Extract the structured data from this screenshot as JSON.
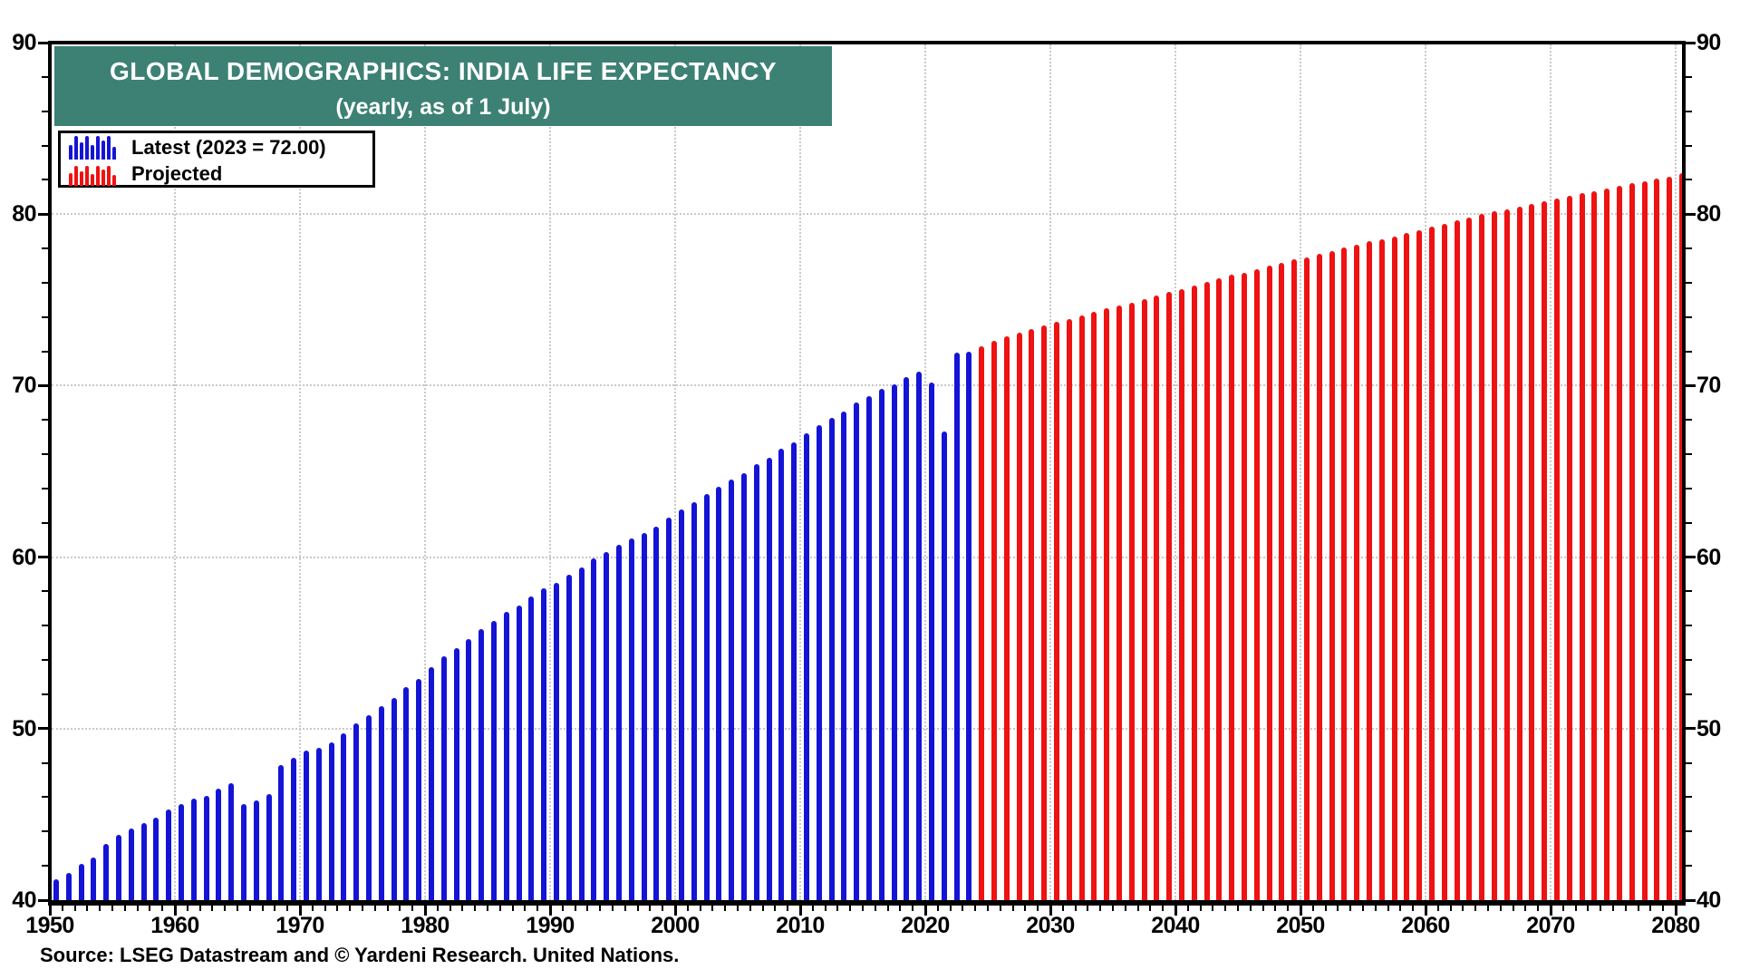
{
  "title": {
    "line1": "GLOBAL DEMOGRAPHICS: INDIA LIFE EXPECTANCY",
    "line2": "(yearly, as of 1 July)"
  },
  "legend": {
    "items": [
      {
        "label": "Latest (2023 = 72.00)",
        "series": "latest"
      },
      {
        "label": "Projected",
        "series": "projected"
      }
    ]
  },
  "source_note": "Source: LSEG Datastream and © Yardeni Research. United Nations.",
  "colors": {
    "latest": "#1414d6",
    "projected": "#ee1212",
    "title_bg": "#3c8174",
    "title_text": "#ffffff",
    "grid": "#c9c9c9",
    "axis": "#000000"
  },
  "chart_data": {
    "type": "bar",
    "title": "GLOBAL DEMOGRAPHICS: INDIA LIFE EXPECTANCY",
    "subtitle": "(yearly, as of 1 July)",
    "ylim": [
      40,
      90
    ],
    "xlim": [
      1950,
      2080
    ],
    "grid": true,
    "legend_position": "top-left",
    "y_major_ticks": [
      40,
      50,
      60,
      70,
      80,
      90
    ],
    "y_minor_step": 2,
    "x_major_ticks": [
      1950,
      1960,
      1970,
      1980,
      1990,
      2000,
      2010,
      2020,
      2030,
      2040,
      2050,
      2060,
      2070,
      2080
    ],
    "x_minor_step": 1,
    "series": [
      {
        "name": "Latest (2023 = 72.00)",
        "color": "#1414d6",
        "start_year": 1950,
        "end_year": 2023,
        "values": [
          41.2,
          41.6,
          42.1,
          42.5,
          43.3,
          43.8,
          44.2,
          44.5,
          44.8,
          45.3,
          45.6,
          45.9,
          46.1,
          46.5,
          46.8,
          45.6,
          45.8,
          46.2,
          47.9,
          48.3,
          48.7,
          48.9,
          49.2,
          49.7,
          50.3,
          50.8,
          51.3,
          51.8,
          52.4,
          52.9,
          53.6,
          54.2,
          54.7,
          55.2,
          55.8,
          56.3,
          56.8,
          57.2,
          57.7,
          58.2,
          58.5,
          59.0,
          59.4,
          59.9,
          60.3,
          60.7,
          61.1,
          61.4,
          61.8,
          62.3,
          62.8,
          63.2,
          63.7,
          64.1,
          64.5,
          64.9,
          65.4,
          65.8,
          66.3,
          66.7,
          67.2,
          67.7,
          68.1,
          68.5,
          69.0,
          69.4,
          69.8,
          70.1,
          70.5,
          70.8,
          70.2,
          67.3,
          71.9,
          72.0
        ]
      },
      {
        "name": "Projected",
        "color": "#ee1212",
        "start_year": 2024,
        "end_year": 2080,
        "values": [
          72.3,
          72.6,
          72.9,
          73.1,
          73.3,
          73.5,
          73.7,
          73.9,
          74.1,
          74.3,
          74.5,
          74.65,
          74.85,
          75.05,
          75.25,
          75.45,
          75.65,
          75.85,
          76.05,
          76.25,
          76.45,
          76.6,
          76.8,
          77.0,
          77.15,
          77.35,
          77.5,
          77.7,
          77.85,
          78.05,
          78.2,
          78.4,
          78.55,
          78.7,
          78.9,
          79.05,
          79.25,
          79.45,
          79.65,
          79.8,
          80.0,
          80.15,
          80.3,
          80.45,
          80.6,
          80.75,
          80.9,
          81.05,
          81.2,
          81.35,
          81.5,
          81.65,
          81.8,
          81.9,
          82.05,
          82.2,
          82.4
        ]
      }
    ]
  }
}
